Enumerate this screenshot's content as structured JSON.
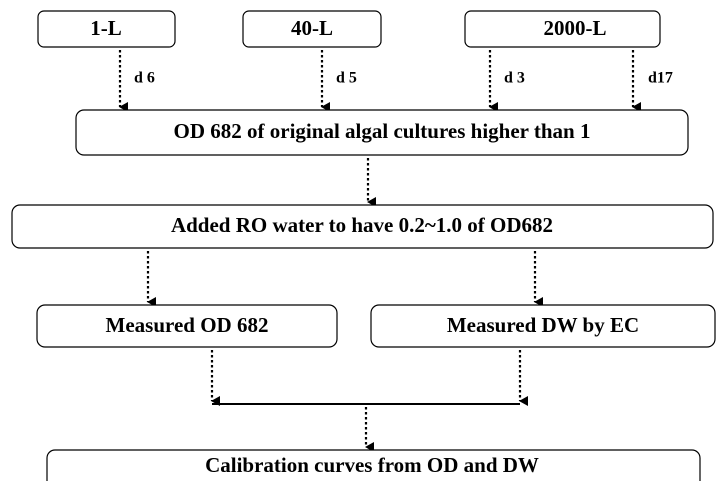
{
  "nodes": [
    {
      "label": "1-L"
    },
    {
      "label": "40-L"
    },
    {
      "label": "2000-L"
    },
    {
      "label": "OD 682 of original algal cultures higher than 1"
    },
    {
      "label": "Added RO water to have 0.2~1.0 of OD682"
    },
    {
      "label": "Measured OD 682"
    },
    {
      "label": "Measured DW by EC"
    },
    {
      "label": "Calibration curves from OD and DW"
    }
  ],
  "edge_labels": [
    "d 6",
    "d 5",
    "d 3",
    "d17"
  ]
}
